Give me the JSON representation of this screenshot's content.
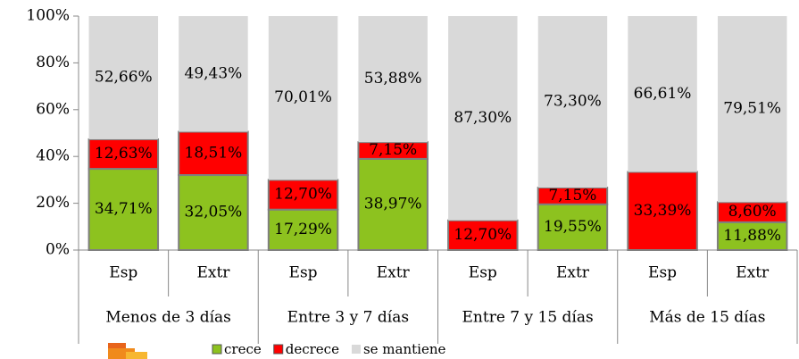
{
  "chart_data": {
    "type": "bar",
    "stacked": true,
    "categories": [
      "Esp",
      "Extr",
      "Esp",
      "Extr",
      "Esp",
      "Extr",
      "Esp",
      "Extr"
    ],
    "groups": [
      "Menos de 3 días",
      "Entre 3 y 7 días",
      "Entre 7 y 15 días",
      "Más de 15 días"
    ],
    "series": [
      {
        "name": "crece",
        "color": "#8dc21f",
        "values": [
          34.71,
          32.05,
          17.29,
          38.97,
          null,
          19.55,
          null,
          11.88
        ],
        "value_labels": [
          "34,71%",
          "32,05%",
          "17,29%",
          "38,97%",
          null,
          "19,55%",
          null,
          "11,88%"
        ]
      },
      {
        "name": "decrece",
        "color": "#ff0000",
        "values": [
          12.63,
          18.51,
          12.7,
          7.15,
          12.7,
          7.15,
          33.39,
          8.6
        ],
        "value_labels": [
          "12,63%",
          "18,51%",
          "12,70%",
          "7,15%",
          "12,70%",
          "7,15%",
          "33,39%",
          "8,60%"
        ]
      },
      {
        "name": "se mantiene",
        "color": "#d9d9d9",
        "values": [
          52.66,
          49.43,
          70.01,
          53.88,
          87.3,
          73.3,
          66.61,
          79.51
        ],
        "value_labels": [
          "52,66%",
          "49,43%",
          "70,01%",
          "53,88%",
          "87,30%",
          "73,30%",
          "66,61%",
          "79,51%"
        ]
      }
    ],
    "ylim": [
      0,
      100
    ],
    "yticks": [
      {
        "value": 0,
        "label": "0%"
      },
      {
        "value": 20,
        "label": "20%"
      },
      {
        "value": 40,
        "label": "40%"
      },
      {
        "value": 60,
        "label": "60%"
      },
      {
        "value": 80,
        "label": "80%"
      },
      {
        "value": 100,
        "label": "100%"
      }
    ]
  }
}
